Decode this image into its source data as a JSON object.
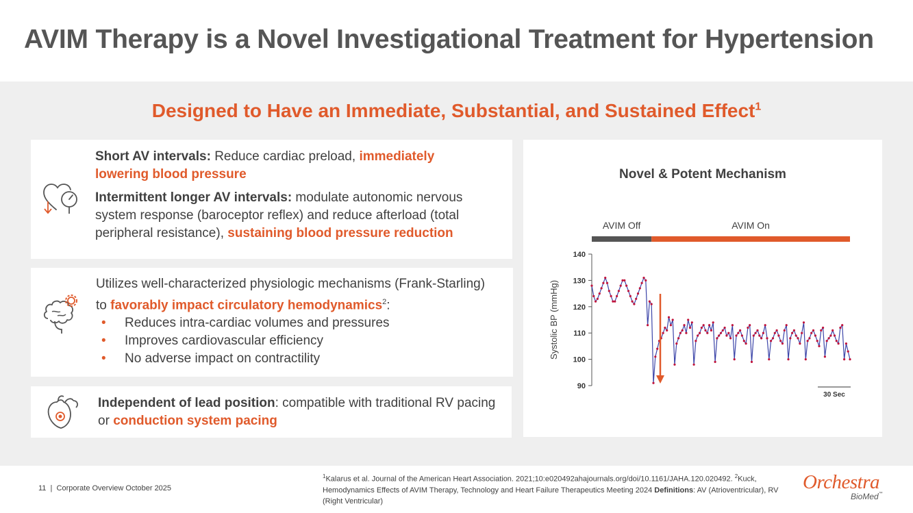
{
  "title": "AVIM Therapy is a Novel Investigational Treatment for Hypertension",
  "subtitle": {
    "text": "Designed to Have an Immediate, Substantial, and Sustained Effect",
    "sup": "1"
  },
  "card1": {
    "p1_bold": "Short AV intervals:",
    "p1_text": " Reduce cardiac preload, ",
    "p1_hl": "immediately lowering blood pressure",
    "p2_bold": "Intermittent longer AV intervals:",
    "p2_text": " modulate autonomic nervous system response (baroceptor reflex) and reduce afterload (total peripheral resistance), ",
    "p2_hl": "sustaining blood pressure reduction"
  },
  "card2": {
    "line1": "Utilizes well-characterized physiologic mechanisms (Frank-Starling)",
    "line2_pre": "to ",
    "line2_hl": "favorably impact circulatory hemodynamics",
    "line2_sup": "2",
    "line2_post": ":",
    "bullets": [
      "Reduces intra-cardiac volumes and pressures",
      "Improves cardiovascular efficiency",
      "No adverse impact on contractility"
    ]
  },
  "card3": {
    "bold": "Independent of lead position",
    "text": ": compatible with traditional RV pacing or ",
    "hl": "conduction system pacing"
  },
  "chart_data": {
    "type": "line",
    "title": "Novel & Potent Mechanism",
    "ylabel": "Systolic BP (mmHg)",
    "xlabel": "",
    "ylim": [
      90,
      140
    ],
    "yticks": [
      90,
      100,
      110,
      120,
      130,
      140
    ],
    "phases": [
      {
        "name": "AVIM Off",
        "color": "#555555"
      },
      {
        "name": "AVIM On",
        "color": "#e05a2b"
      }
    ],
    "scale_bar_label": "30 Sec",
    "x": [
      0,
      1,
      2,
      3,
      4,
      5,
      6,
      7,
      8,
      9,
      10,
      11,
      12,
      13,
      14,
      15,
      16,
      17,
      18,
      19,
      20,
      21,
      22,
      23,
      24,
      25,
      26,
      27,
      28,
      29,
      30,
      31,
      32,
      33,
      34,
      35,
      36,
      37,
      38,
      39,
      40,
      41,
      42,
      43,
      44,
      45,
      46,
      47,
      48,
      49,
      50,
      51,
      52,
      53,
      54,
      55,
      56,
      57,
      58,
      59,
      60,
      61,
      62,
      63,
      64,
      65,
      66,
      67,
      68,
      69,
      70,
      71,
      72,
      73,
      74,
      75,
      76,
      77,
      78,
      79,
      80,
      81,
      82,
      83,
      84,
      85,
      86,
      87,
      88,
      89,
      90,
      91,
      92,
      93,
      94,
      95,
      96,
      97,
      98,
      99,
      100,
      101,
      102,
      103,
      104,
      105,
      106,
      107,
      108,
      109,
      110,
      111,
      112,
      113,
      114,
      115,
      116,
      117,
      118,
      119,
      120,
      121,
      122,
      123,
      124,
      125,
      126,
      127,
      128,
      129,
      130,
      131,
      132,
      133,
      134
    ],
    "values": [
      128,
      124,
      122,
      123,
      125,
      127,
      129,
      131,
      129,
      126,
      124,
      122,
      122,
      124,
      126,
      128,
      130,
      130,
      128,
      126,
      124,
      122,
      121,
      123,
      125,
      127,
      129,
      131,
      130,
      113,
      122,
      121,
      91,
      101,
      104,
      107,
      108,
      110,
      112,
      111,
      116,
      113,
      115,
      98,
      106,
      108,
      110,
      111,
      113,
      110,
      115,
      112,
      114,
      98,
      107,
      109,
      110,
      112,
      113,
      111,
      110,
      113,
      111,
      114,
      99,
      108,
      109,
      110,
      111,
      112,
      109,
      110,
      108,
      113,
      100,
      109,
      110,
      111,
      109,
      107,
      106,
      112,
      113,
      99,
      109,
      110,
      111,
      109,
      108,
      110,
      113,
      108,
      100,
      107,
      108,
      110,
      111,
      109,
      107,
      106,
      111,
      113,
      100,
      108,
      110,
      111,
      109,
      108,
      106,
      110,
      114,
      100,
      107,
      108,
      110,
      111,
      109,
      107,
      105,
      111,
      112,
      101,
      107,
      108,
      109,
      111,
      109,
      107,
      106,
      112,
      113,
      100,
      106,
      103,
      100
    ],
    "off_end_index": 31
  },
  "footer": {
    "page": "11",
    "label": "Corporate Overview October 2025",
    "footnote1_sup": "1",
    "footnote1": "Kalarus et al. Journal of the American Heart Association. 2021;10:e020492ahajournals.org/doi/10.1161/JAHA.120.020492. ",
    "footnote2_sup": "2",
    "footnote2": "Kuck, Hemodynamics Effects of AVIM Therapy, Technology and Heart Failure Therapeutics Meeting 2024  ",
    "def_bold": "Definitions",
    "def_text": ": AV (Atrioventricular), RV (Right Ventricular)"
  },
  "logo": {
    "main": "Orchestra",
    "sub": "BioMed",
    "tm": "™"
  },
  "colors": {
    "accent": "#e05a2b",
    "dark": "#555555",
    "trace": "#3b44a8",
    "point": "#c0143c"
  }
}
